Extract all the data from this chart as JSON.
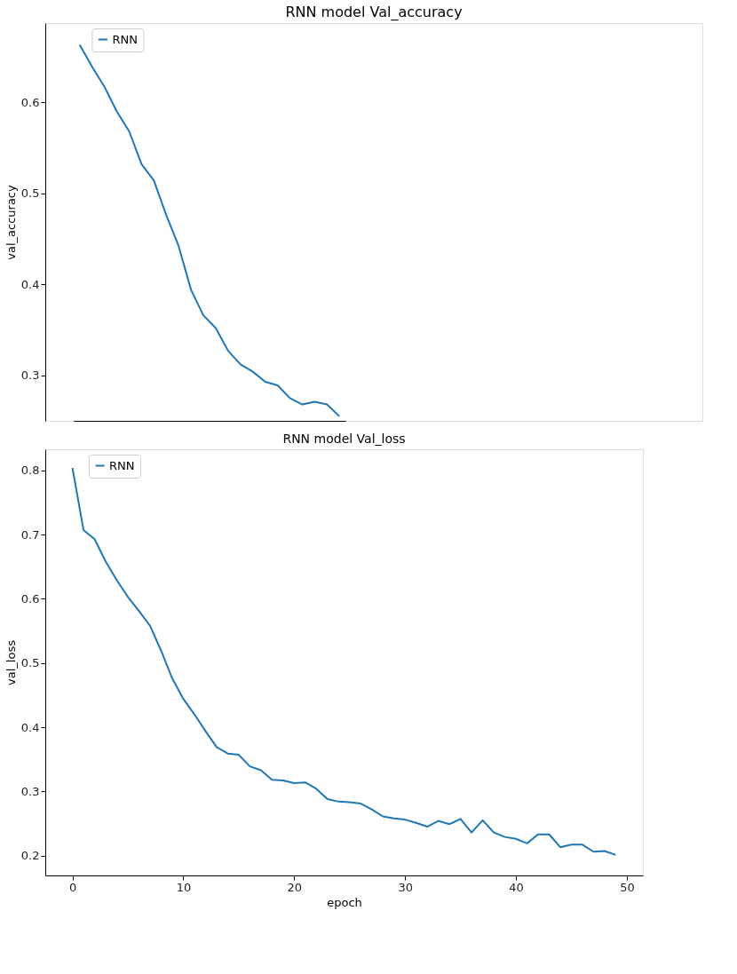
{
  "chart_data": [
    {
      "type": "line",
      "title": "RNN model Val_accuracy",
      "ylabel": "val_accuracy",
      "categories": [
        null,
        null,
        null,
        null,
        null,
        null,
        null,
        null,
        null,
        null,
        null,
        null,
        null,
        null,
        null,
        null,
        null,
        null,
        null,
        null,
        null,
        null
      ],
      "series": [
        {
          "name": "RNN",
          "color": "#1f77b4",
          "values": [
            0.663,
            0.639,
            0.617,
            0.59,
            0.568,
            0.532,
            0.514,
            0.476,
            0.442,
            0.394,
            0.366,
            0.352,
            0.327,
            0.312,
            0.304,
            0.293,
            0.289,
            0.275,
            0.268,
            0.271,
            0.268,
            0.255
          ]
        }
      ],
      "ylim": [
        0.25,
        0.687
      ],
      "yticks": [
        0.3,
        0.4,
        0.5,
        0.6
      ],
      "tick_labels": "y",
      "legend": "top left",
      "grid": false
    },
    {
      "type": "line",
      "title": "RNN model Val_loss",
      "xlabel": "epoch",
      "ylabel": "val_loss",
      "x": [
        0,
        1,
        2,
        3,
        4,
        5,
        6,
        7,
        8,
        9,
        10,
        11,
        12,
        13,
        14,
        15,
        16,
        17,
        18,
        19,
        20,
        21,
        22,
        23,
        24,
        25,
        26,
        27,
        28,
        29,
        30,
        31,
        32,
        33,
        34,
        35,
        36,
        37,
        38,
        39,
        40,
        41,
        42,
        43,
        44,
        45,
        46,
        47,
        48,
        49
      ],
      "series": [
        {
          "name": "RNN",
          "color": "#1f77b4",
          "values": [
            0.804,
            0.707,
            0.693,
            0.658,
            0.629,
            0.603,
            0.581,
            0.558,
            0.519,
            0.476,
            0.444,
            0.42,
            0.394,
            0.369,
            0.359,
            0.357,
            0.339,
            0.333,
            0.318,
            0.317,
            0.313,
            0.314,
            0.304,
            0.288,
            0.284,
            0.283,
            0.281,
            0.272,
            0.261,
            0.258,
            0.256,
            0.251,
            0.245,
            0.254,
            0.249,
            0.257,
            0.236,
            0.255,
            0.236,
            0.229,
            0.226,
            0.219,
            0.233,
            0.233,
            0.213,
            0.217,
            0.217,
            0.206,
            0.207,
            0.201
          ]
        }
      ],
      "xlim": [
        -2.45,
        51.45
      ],
      "ylim": [
        0.169,
        0.833
      ],
      "xticks": [
        0,
        10,
        20,
        30,
        40,
        50
      ],
      "yticks": [
        0.2,
        0.3,
        0.4,
        0.5,
        0.6,
        0.7,
        0.8
      ],
      "legend": "top left",
      "grid": false
    }
  ]
}
